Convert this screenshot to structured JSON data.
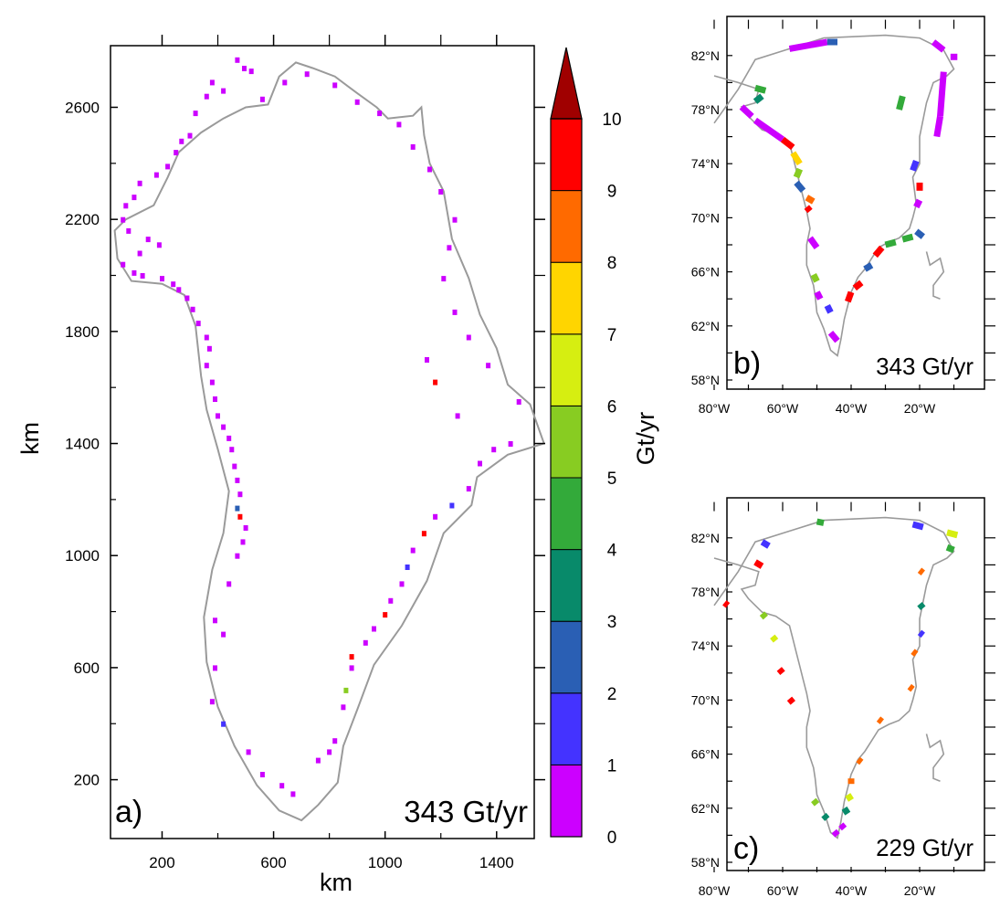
{
  "colors": {
    "coast": "#9a9a9a",
    "bins": [
      "#cc00ff",
      "#4433ff",
      "#2a5fb4",
      "#088a6a",
      "#33aa3a",
      "#88cc22",
      "#d6ee11",
      "#ffd500",
      "#ff6a00",
      "#ff0000"
    ],
    "over": "#a00000"
  },
  "panels": [
    {
      "id": "a",
      "label": "a)",
      "total": "343 Gt/yr"
    },
    {
      "id": "b",
      "label": "b)",
      "total": "343 Gt/yr"
    },
    {
      "id": "c",
      "label": "c)",
      "total": "229 Gt/yr"
    }
  ],
  "chart_data": [
    {
      "panel": "a",
      "type": "heatmap",
      "title": "",
      "xlabel": "km",
      "ylabel": "km",
      "xticks": [
        200,
        600,
        1000,
        1400
      ],
      "yticks": [
        200,
        600,
        1000,
        1400,
        1800,
        2200,
        2600
      ],
      "xlim": [
        15,
        1535
      ],
      "ylim": [
        -10,
        2820
      ],
      "total_label": "343 Gt/yr",
      "coastline_km": [
        [
          700,
          55
        ],
        [
          760,
          110
        ],
        [
          830,
          190
        ],
        [
          850,
          320
        ],
        [
          900,
          450
        ],
        [
          960,
          610
        ],
        [
          1060,
          750
        ],
        [
          1150,
          910
        ],
        [
          1210,
          1080
        ],
        [
          1310,
          1180
        ],
        [
          1330,
          1280
        ],
        [
          1440,
          1360
        ],
        [
          1570,
          1400
        ],
        [
          1520,
          1540
        ],
        [
          1440,
          1610
        ],
        [
          1400,
          1740
        ],
        [
          1340,
          1860
        ],
        [
          1300,
          1990
        ],
        [
          1240,
          2130
        ],
        [
          1210,
          2300
        ],
        [
          1160,
          2400
        ],
        [
          1140,
          2500
        ],
        [
          1130,
          2600
        ],
        [
          1100,
          2570
        ],
        [
          1010,
          2560
        ],
        [
          970,
          2600
        ],
        [
          900,
          2650
        ],
        [
          820,
          2710
        ],
        [
          740,
          2740
        ],
        [
          680,
          2760
        ],
        [
          620,
          2710
        ],
        [
          580,
          2610
        ],
        [
          500,
          2600
        ],
        [
          420,
          2560
        ],
        [
          340,
          2510
        ],
        [
          260,
          2440
        ],
        [
          220,
          2350
        ],
        [
          170,
          2250
        ],
        [
          70,
          2200
        ],
        [
          30,
          2160
        ],
        [
          40,
          2060
        ],
        [
          90,
          1980
        ],
        [
          200,
          1970
        ],
        [
          280,
          1930
        ],
        [
          320,
          1820
        ],
        [
          340,
          1640
        ],
        [
          360,
          1520
        ],
        [
          400,
          1380
        ],
        [
          440,
          1230
        ],
        [
          420,
          1080
        ],
        [
          380,
          950
        ],
        [
          350,
          780
        ],
        [
          360,
          620
        ],
        [
          400,
          460
        ],
        [
          460,
          320
        ],
        [
          540,
          180
        ],
        [
          620,
          90
        ],
        [
          700,
          55
        ]
      ],
      "pixels_km": [
        [
          470,
          2770,
          0
        ],
        [
          495,
          2740,
          0
        ],
        [
          520,
          2730,
          0
        ],
        [
          380,
          2690,
          0
        ],
        [
          420,
          2660,
          0
        ],
        [
          360,
          2640,
          0
        ],
        [
          320,
          2580,
          0
        ],
        [
          300,
          2500,
          0
        ],
        [
          270,
          2480,
          0
        ],
        [
          250,
          2440,
          0
        ],
        [
          220,
          2390,
          0
        ],
        [
          180,
          2360,
          0
        ],
        [
          120,
          2330,
          0
        ],
        [
          100,
          2280,
          0
        ],
        [
          70,
          2250,
          0
        ],
        [
          60,
          2200,
          0
        ],
        [
          80,
          2160,
          0
        ],
        [
          150,
          2130,
          0
        ],
        [
          190,
          2110,
          0
        ],
        [
          120,
          2080,
          0
        ],
        [
          60,
          2040,
          0
        ],
        [
          100,
          2010,
          0
        ],
        [
          130,
          2000,
          0
        ],
        [
          200,
          1990,
          0
        ],
        [
          240,
          1970,
          0
        ],
        [
          260,
          1950,
          0
        ],
        [
          290,
          1920,
          0
        ],
        [
          310,
          1880,
          0
        ],
        [
          330,
          1830,
          0
        ],
        [
          360,
          1780,
          0
        ],
        [
          370,
          1740,
          0
        ],
        [
          360,
          1680,
          0
        ],
        [
          380,
          1620,
          0
        ],
        [
          390,
          1560,
          0
        ],
        [
          400,
          1500,
          0
        ],
        [
          420,
          1460,
          0
        ],
        [
          440,
          1420,
          0
        ],
        [
          450,
          1380,
          0
        ],
        [
          460,
          1320,
          0
        ],
        [
          470,
          1270,
          0
        ],
        [
          480,
          1220,
          0
        ],
        [
          470,
          1170,
          2
        ],
        [
          480,
          1140,
          9
        ],
        [
          500,
          1100,
          0
        ],
        [
          490,
          1050,
          0
        ],
        [
          470,
          1000,
          0
        ],
        [
          440,
          900,
          0
        ],
        [
          390,
          770,
          0
        ],
        [
          420,
          720,
          0
        ],
        [
          390,
          600,
          0
        ],
        [
          380,
          480,
          0
        ],
        [
          420,
          400,
          1
        ],
        [
          510,
          300,
          0
        ],
        [
          560,
          220,
          0
        ],
        [
          630,
          180,
          0
        ],
        [
          670,
          150,
          0
        ],
        [
          760,
          270,
          0
        ],
        [
          800,
          300,
          0
        ],
        [
          820,
          340,
          0
        ],
        [
          850,
          460,
          0
        ],
        [
          860,
          520,
          5
        ],
        [
          880,
          600,
          0
        ],
        [
          880,
          640,
          9
        ],
        [
          930,
          690,
          0
        ],
        [
          960,
          740,
          0
        ],
        [
          1000,
          790,
          9
        ],
        [
          1020,
          840,
          0
        ],
        [
          1060,
          900,
          0
        ],
        [
          1080,
          960,
          1
        ],
        [
          1100,
          1020,
          0
        ],
        [
          1140,
          1080,
          9
        ],
        [
          1180,
          1140,
          0
        ],
        [
          1240,
          1180,
          1
        ],
        [
          1300,
          1240,
          0
        ],
        [
          1340,
          1330,
          0
        ],
        [
          1390,
          1380,
          0
        ],
        [
          1450,
          1400,
          0
        ],
        [
          1480,
          1550,
          0
        ],
        [
          1370,
          1680,
          0
        ],
        [
          1300,
          1780,
          0
        ],
        [
          1250,
          1870,
          0
        ],
        [
          1210,
          1990,
          0
        ],
        [
          1230,
          2100,
          0
        ],
        [
          1250,
          2200,
          0
        ],
        [
          1200,
          2300,
          0
        ],
        [
          1160,
          2380,
          0
        ],
        [
          1100,
          2460,
          0
        ],
        [
          1050,
          2540,
          0
        ],
        [
          980,
          2580,
          0
        ],
        [
          900,
          2620,
          0
        ],
        [
          820,
          2680,
          0
        ],
        [
          720,
          2720,
          0
        ],
        [
          640,
          2690,
          0
        ],
        [
          560,
          2630,
          0
        ],
        [
          1180,
          1620,
          9
        ],
        [
          1260,
          1500,
          0
        ],
        [
          1150,
          1700,
          0
        ]
      ]
    },
    {
      "panel": "b",
      "type": "heatmap",
      "title": "",
      "xlabel": "",
      "ylabel": "",
      "xticks": [
        "80°W",
        "60°W",
        "40°W",
        "20°W"
      ],
      "yticks": [
        "82°N",
        "78°N",
        "74°N",
        "70°N",
        "66°N",
        "62°N",
        "58°N"
      ],
      "total_label": "343 Gt/yr",
      "segments_lonlat": [
        [
          -58,
          82.5,
          -47,
          83.0,
          0
        ],
        [
          -47,
          83.0,
          -44,
          83.0,
          2
        ],
        [
          -16,
          83.0,
          -13,
          82.4,
          0
        ],
        [
          -11,
          81.9,
          -9,
          81.9,
          0
        ],
        [
          -13,
          80.8,
          -14,
          77.5,
          0
        ],
        [
          -14,
          77.5,
          -15,
          76.0,
          0
        ],
        [
          -68,
          79.6,
          -65,
          79.4,
          4
        ],
        [
          -66,
          79.0,
          -68,
          78.6,
          3
        ],
        [
          -72,
          78.2,
          -69,
          77.5,
          0
        ],
        [
          -68,
          77.2,
          -60,
          75.8,
          0
        ],
        [
          -60,
          75.8,
          -57,
          75.2,
          9
        ],
        [
          -57,
          74.8,
          -55,
          74.0,
          7
        ],
        [
          -55,
          73.6,
          -56,
          73.0,
          5
        ],
        [
          -56,
          72.6,
          -54,
          72.0,
          2
        ],
        [
          -53,
          71.5,
          -51,
          71.2,
          8
        ],
        [
          -53,
          70.8,
          -52,
          70.5,
          9
        ],
        [
          -52,
          68.5,
          -50,
          67.8,
          0
        ],
        [
          -51,
          65.8,
          -50,
          65.3,
          5
        ],
        [
          -50,
          64.5,
          -49,
          64.0,
          0
        ],
        [
          -47,
          63.5,
          -46,
          63.0,
          1
        ],
        [
          -46,
          61.5,
          -44,
          60.9,
          0
        ],
        [
          -41,
          63.8,
          -40,
          64.5,
          9
        ],
        [
          -39,
          64.8,
          -37,
          65.2,
          9
        ],
        [
          -36,
          66.2,
          -34,
          66.5,
          2
        ],
        [
          -33,
          67.2,
          -31,
          67.8,
          9
        ],
        [
          -30,
          68.0,
          -27,
          68.2,
          4
        ],
        [
          -25,
          68.4,
          -22,
          68.6,
          4
        ],
        [
          -21,
          69.0,
          -19,
          68.6,
          2
        ],
        [
          -21,
          70.8,
          -20,
          71.3,
          0
        ],
        [
          -20,
          72.0,
          -20,
          72.6,
          9
        ],
        [
          -22,
          73.5,
          -21,
          74.2,
          1
        ],
        [
          -25,
          79.0,
          -26,
          78.0,
          4
        ]
      ]
    },
    {
      "panel": "c",
      "type": "heatmap",
      "title": "",
      "xlabel": "",
      "ylabel": "",
      "xticks": [
        "80°W",
        "60°W",
        "40°W",
        "20°W"
      ],
      "yticks": [
        "82°N",
        "78°N",
        "74°N",
        "70°N",
        "66°N",
        "62°N",
        "58°N"
      ],
      "total_label": "229 Gt/yr",
      "segments_lonlat": [
        [
          -50,
          83.2,
          -48,
          83.1,
          4
        ],
        [
          -22,
          83.0,
          -19,
          82.8,
          1
        ],
        [
          -12,
          82.4,
          -9,
          82.2,
          6
        ],
        [
          -12,
          81.3,
          -10,
          81.1,
          4
        ],
        [
          -20,
          79.6,
          -19,
          79.4,
          8
        ],
        [
          -20,
          77.1,
          -19,
          76.8,
          3
        ],
        [
          -20,
          75.0,
          -19,
          74.8,
          1
        ],
        [
          -22,
          73.6,
          -21,
          73.4,
          8
        ],
        [
          -23,
          71.0,
          -22,
          70.8,
          8
        ],
        [
          -32,
          68.6,
          -31,
          68.4,
          8
        ],
        [
          -38,
          65.6,
          -37,
          65.4,
          8
        ],
        [
          -40,
          64.2,
          -40,
          63.8,
          8
        ],
        [
          -41,
          63.0,
          -40,
          62.6,
          6
        ],
        [
          -42,
          62.0,
          -41,
          61.6,
          3
        ],
        [
          -43,
          60.8,
          -42,
          60.5,
          0
        ],
        [
          -45,
          60.3,
          -44,
          60.0,
          0
        ],
        [
          -48,
          61.5,
          -47,
          61.2,
          3
        ],
        [
          -51,
          62.6,
          -50,
          62.3,
          5
        ],
        [
          -58,
          70.1,
          -57,
          69.8,
          9
        ],
        [
          -61,
          72.3,
          -60,
          72.0,
          9
        ],
        [
          -63,
          74.7,
          -62,
          74.4,
          6
        ],
        [
          -66,
          76.4,
          -65,
          76.1,
          5
        ],
        [
          -77,
          77.2,
          -76,
          77.0,
          9
        ],
        [
          -68,
          80.2,
          -66,
          79.9,
          9
        ],
        [
          -66,
          81.7,
          -64,
          81.4,
          1
        ]
      ]
    }
  ],
  "colorbar": {
    "title": "Gt/yr",
    "ticks": [
      "0",
      "1",
      "2",
      "3",
      "4",
      "5",
      "6",
      "7",
      "8",
      "9",
      "10"
    ]
  }
}
